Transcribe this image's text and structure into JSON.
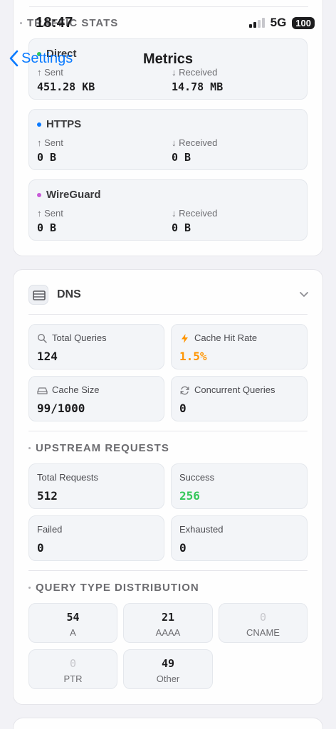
{
  "status_bar": {
    "time": "18:47",
    "network": "5G",
    "battery": "100"
  },
  "nav": {
    "back_label": "Settings",
    "title": "Metrics"
  },
  "traffic": {
    "section_title": "TRAFFIC STATS",
    "sent_label": "Sent",
    "received_label": "Received",
    "protocols": [
      {
        "name": "Direct",
        "dot_color": "#34c759",
        "sent": "451.28 KB",
        "received": "14.78 MB"
      },
      {
        "name": "HTTPS",
        "dot_color": "#0a7aff",
        "sent": "0 B",
        "received": "0 B"
      },
      {
        "name": "WireGuard",
        "dot_color": "#c85ad8",
        "sent": "0 B",
        "received": "0 B"
      }
    ]
  },
  "dns": {
    "title": "DNS",
    "stats": [
      {
        "label": "Total Queries",
        "value": "124",
        "icon": "search-icon"
      },
      {
        "label": "Cache Hit Rate",
        "value": "1.5%",
        "icon": "bolt-icon",
        "color": "#ff9500"
      },
      {
        "label": "Cache Size",
        "value": "99/1000",
        "icon": "drive-icon"
      },
      {
        "label": "Concurrent Queries",
        "value": "0",
        "icon": "refresh-icon"
      }
    ],
    "upstream": {
      "section_title": "UPSTREAM REQUESTS",
      "stats": [
        {
          "label": "Total Requests",
          "value": "512"
        },
        {
          "label": "Success",
          "value": "256",
          "color": "#34c759"
        },
        {
          "label": "Failed",
          "value": "0"
        },
        {
          "label": "Exhausted",
          "value": "0"
        }
      ]
    },
    "query_types": {
      "section_title": "QUERY TYPE DISTRIBUTION",
      "items": [
        {
          "type": "A",
          "count": "54"
        },
        {
          "type": "AAAA",
          "count": "21"
        },
        {
          "type": "CNAME",
          "count": "0"
        },
        {
          "type": "PTR",
          "count": "0"
        },
        {
          "type": "Other",
          "count": "49"
        }
      ]
    }
  }
}
